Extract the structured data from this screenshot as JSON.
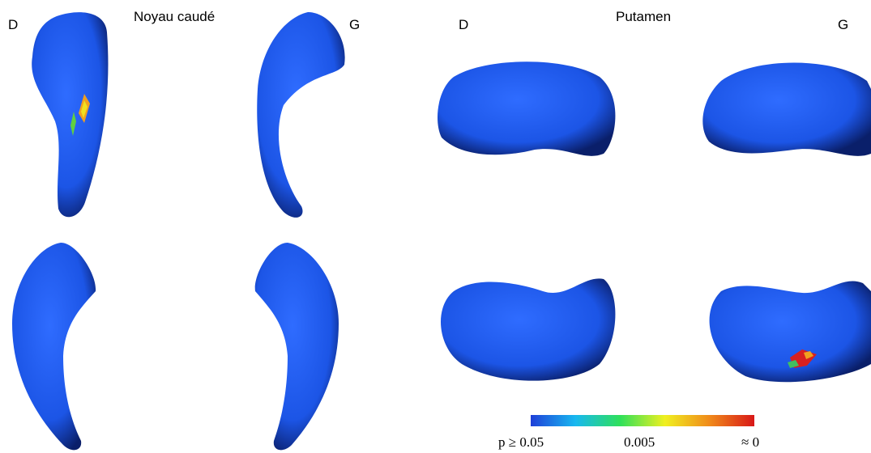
{
  "panels": [
    {
      "title": "Noyau caudé",
      "left_label": "D",
      "right_label": "G"
    },
    {
      "title": "Putamen",
      "left_label": "D",
      "right_label": "G"
    }
  ],
  "colorbar": {
    "labels": [
      "p ≥ 0.05",
      "0.005",
      "≈ 0"
    ]
  }
}
